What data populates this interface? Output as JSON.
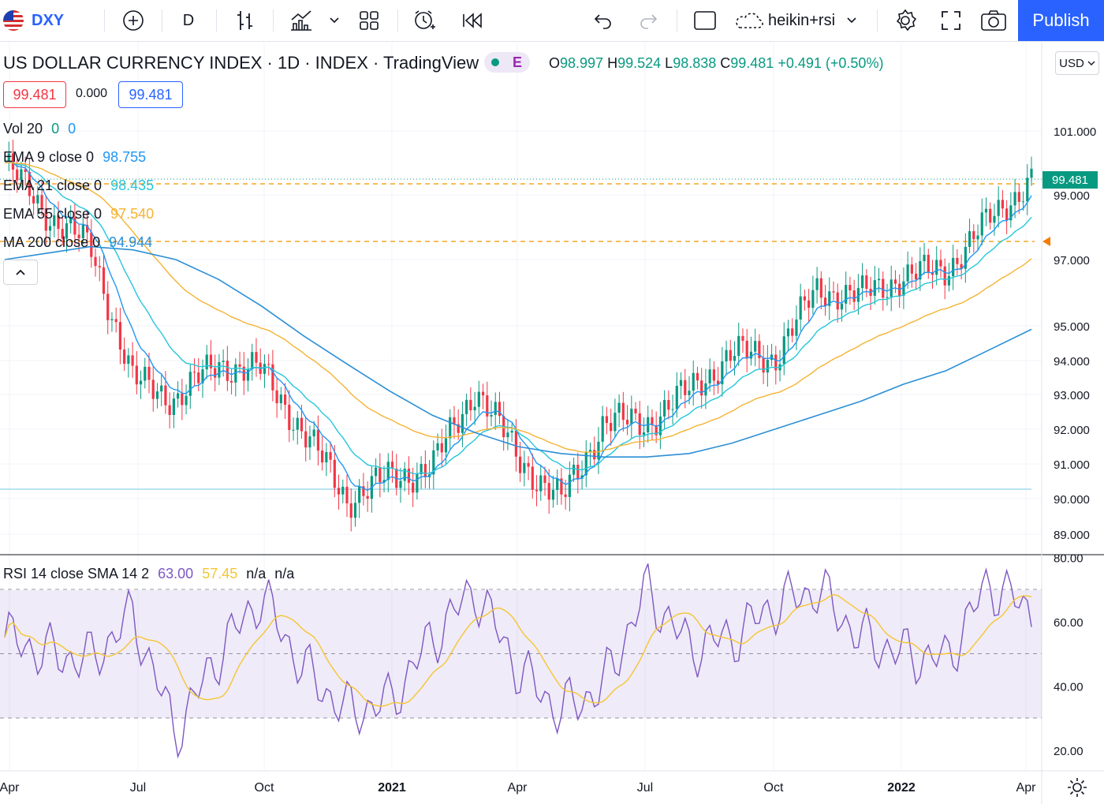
{
  "toolbar": {
    "symbol": "DXY",
    "interval": "D",
    "indicator_template": "heikin+rsi",
    "publish_label": "Publish",
    "icons": [
      "us-flag-icon",
      "add-symbol-icon",
      "bar-style-icon",
      "indicators-icon",
      "chevron-down-icon",
      "layout-grid-icon",
      "alert-icon",
      "replay-icon",
      "undo-icon",
      "redo-icon",
      "rectangle-icon",
      "cloud-icon",
      "settings-gear-icon",
      "fullscreen-icon",
      "camera-icon"
    ]
  },
  "header": {
    "title": "US DOLLAR CURRENCY INDEX · 1D · INDEX · TradingView",
    "badge": "E",
    "ohlc": {
      "o_label": "O",
      "o": "98.997",
      "h_label": "H",
      "h": "99.524",
      "l_label": "L",
      "l": "98.838",
      "c_label": "C",
      "c": "99.481",
      "change": "+0.491 (+0.50%)"
    }
  },
  "price_boxes": {
    "bid": "99.481",
    "spread": "0.000",
    "ask": "99.481"
  },
  "indicators": {
    "vol": {
      "label": "Vol 20",
      "v1": "0",
      "v2": "0"
    },
    "ema9": {
      "label": "EMA 9 close 0",
      "value": "98.755"
    },
    "ema21": {
      "label": "EMA 21 close 0",
      "value": "98.435"
    },
    "ema55": {
      "label": "EMA 55 close 0",
      "value": "97.540"
    },
    "ma200": {
      "label": "MA 200 close 0",
      "value": "94.944"
    },
    "rsi": {
      "label": "RSI 14 close SMA 14 2",
      "value": "63.00",
      "sma": "57.45",
      "n1": "n/a",
      "n2": "n/a"
    }
  },
  "price_axis": {
    "currency": "USD",
    "current_price": "99.481",
    "ticks": [
      "101.000",
      "99.000",
      "97.000",
      "95.000",
      "94.000",
      "93.000",
      "92.000",
      "91.000",
      "90.000",
      "89.000"
    ]
  },
  "rsi_axis": {
    "ticks": [
      "80.00",
      "60.00",
      "40.00",
      "20.00"
    ]
  },
  "time_axis": {
    "labels": [
      "Apr",
      "Jul",
      "Oct",
      "2021",
      "Apr",
      "Jul",
      "Oct",
      "2022",
      "Apr"
    ]
  },
  "colors": {
    "up": "#089981",
    "down": "#f23645",
    "ema9": "#2196f3",
    "ema21": "#26c6da",
    "ema55": "#f5b333",
    "ma200": "#2b8fd6",
    "rsi": "#7e57c2",
    "rsi_sma": "#f5c633",
    "accent": "#2962ff"
  },
  "chart_data": {
    "type": "line",
    "title": "US DOLLAR CURRENCY INDEX · 1D · INDEX · TradingView",
    "x": [
      "2020-04",
      "2020-05",
      "2020-06",
      "2020-07",
      "2020-08",
      "2020-09",
      "2020-10",
      "2020-11",
      "2020-12",
      "2021-01",
      "2021-02",
      "2021-03",
      "2021-04",
      "2021-05",
      "2021-06",
      "2021-07",
      "2021-08",
      "2021-09",
      "2021-10",
      "2021-11",
      "2021-12",
      "2022-01",
      "2022-02",
      "2022-03",
      "2022-04"
    ],
    "series": [
      {
        "name": "close",
        "values": [
          100.0,
          98.4,
          97.4,
          93.4,
          92.9,
          93.9,
          93.7,
          91.9,
          90.0,
          90.6,
          90.9,
          93.2,
          91.2,
          89.9,
          92.2,
          92.2,
          93.1,
          94.2,
          94.1,
          96.1,
          95.9,
          96.5,
          96.7,
          98.2,
          99.5
        ]
      },
      {
        "name": "MA 200 close 0",
        "values": [
          97.0,
          97.2,
          97.4,
          97.3,
          97.0,
          96.4,
          95.6,
          94.7,
          93.9,
          93.1,
          92.4,
          91.9,
          91.5,
          91.3,
          91.2,
          91.2,
          91.3,
          91.6,
          92.0,
          92.4,
          92.8,
          93.3,
          93.7,
          94.3,
          94.9
        ]
      }
    ],
    "rsi": {
      "name": "RSI 14 close SMA 14 2",
      "values": [
        55,
        50,
        48,
        62,
        25,
        50,
        68,
        45,
        32,
        35,
        55,
        70,
        45,
        32,
        40,
        70,
        52,
        55,
        65,
        70,
        55,
        50,
        48,
        72,
        63
      ]
    },
    "ylim": [
      89,
      101.5
    ],
    "rsi_ylim": [
      20,
      80
    ]
  }
}
